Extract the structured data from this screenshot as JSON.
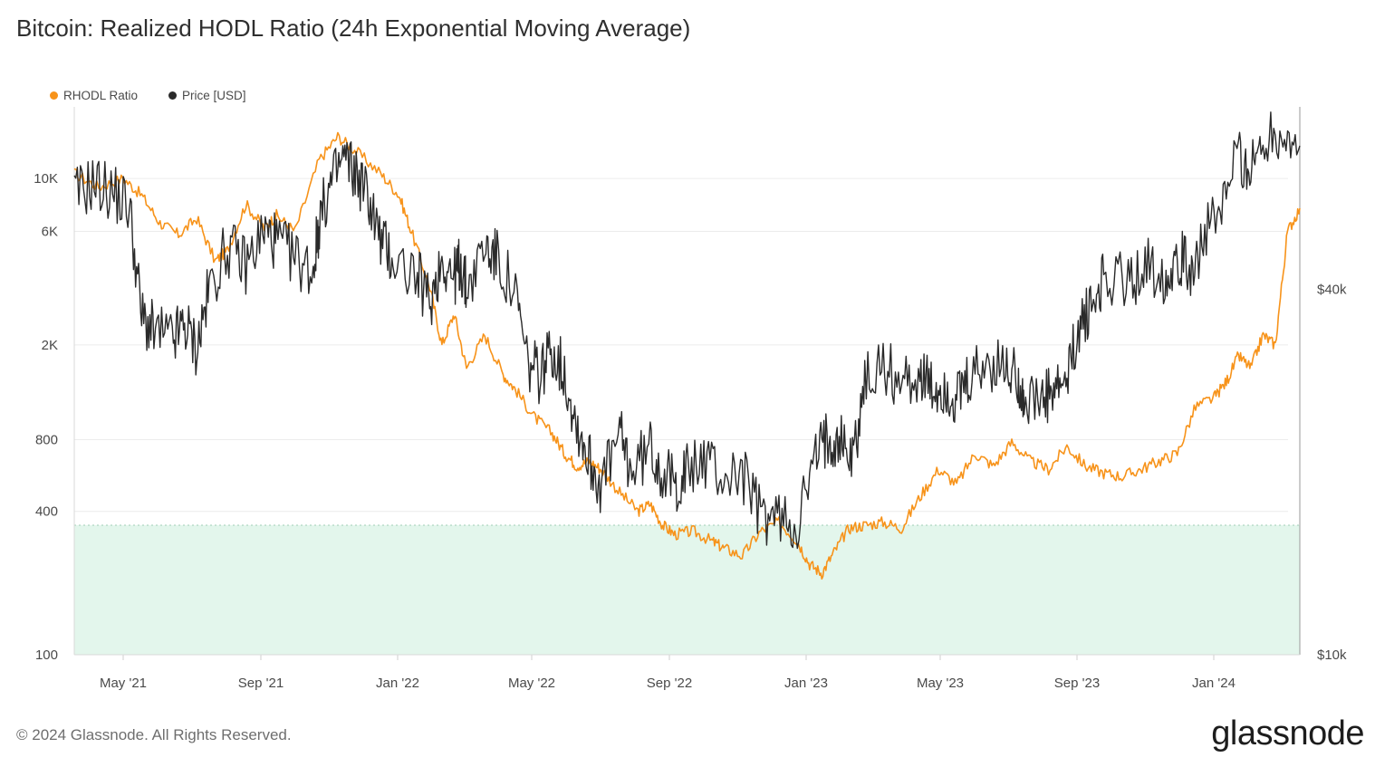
{
  "title": "Bitcoin: Realized HODL Ratio (24h Exponential Moving Average)",
  "footer": "© 2024 Glassnode. All Rights Reserved.",
  "brand": "glassnode",
  "chart_data": {
    "type": "line",
    "title": "Bitcoin: Realized HODL Ratio (24h Exponential Moving Average)",
    "x_ticks": [
      "May '21",
      "Sep '21",
      "Jan '22",
      "May '22",
      "Sep '22",
      "Jan '23",
      "May '23",
      "Sep '23",
      "Jan '24"
    ],
    "x_range": [
      "2021-03-25",
      "2024-03-28"
    ],
    "left_axis": {
      "scale": "log",
      "ticks": [
        "100",
        "400",
        "800",
        "2K",
        "6K",
        "10K"
      ],
      "tick_values": [
        100,
        400,
        800,
        2000,
        6000,
        10000
      ],
      "range": [
        100,
        20000
      ]
    },
    "right_axis": {
      "scale": "log",
      "ticks": [
        "$10k",
        "$40k"
      ],
      "tick_values": [
        10000,
        40000
      ],
      "range": [
        10000,
        80000
      ]
    },
    "highlight_band": {
      "axis": "left",
      "from": 100,
      "to": 350,
      "color": "#e3f6ec"
    },
    "legend": [
      {
        "name": "RHODL Ratio",
        "color": "#f7931a"
      },
      {
        "name": "Price [USD]",
        "color": "#2a2a2a"
      }
    ],
    "series": [
      {
        "name": "RHODL Ratio",
        "axis": "left",
        "color": "#f7931a",
        "x": [
          0,
          0.02,
          0.04,
          0.055,
          0.07,
          0.085,
          0.1,
          0.115,
          0.125,
          0.14,
          0.155,
          0.165,
          0.18,
          0.2,
          0.215,
          0.23,
          0.25,
          0.265,
          0.275,
          0.29,
          0.3,
          0.31,
          0.32,
          0.335,
          0.35,
          0.36,
          0.375,
          0.39,
          0.4,
          0.41,
          0.42,
          0.43,
          0.445,
          0.46,
          0.47,
          0.48,
          0.49,
          0.505,
          0.52,
          0.53,
          0.545,
          0.56,
          0.575,
          0.59,
          0.6,
          0.61,
          0.62,
          0.632,
          0.645,
          0.66,
          0.675,
          0.69,
          0.705,
          0.72,
          0.735,
          0.75,
          0.765,
          0.78,
          0.795,
          0.81,
          0.825,
          0.84,
          0.855,
          0.87,
          0.885,
          0.9,
          0.915,
          0.93,
          0.94,
          0.95,
          0.96,
          0.97,
          0.98,
          0.99,
          1.0
        ],
        "y": [
          10500,
          9200,
          10000,
          8500,
          6500,
          5800,
          6800,
          4500,
          5000,
          7800,
          6200,
          7000,
          6000,
          12000,
          15000,
          13000,
          10500,
          8500,
          6000,
          3500,
          2000,
          2700,
          1600,
          2200,
          1500,
          1300,
          1000,
          850,
          700,
          620,
          650,
          600,
          480,
          400,
          430,
          350,
          320,
          330,
          300,
          280,
          260,
          330,
          360,
          300,
          240,
          220,
          270,
          340,
          350,
          360,
          340,
          460,
          600,
          520,
          700,
          620,
          780,
          650,
          600,
          750,
          620,
          580,
          560,
          600,
          650,
          700,
          1100,
          1200,
          1400,
          1800,
          1600,
          2200,
          2000,
          6000,
          7500
        ]
      },
      {
        "name": "Price [USD]",
        "axis": "right",
        "color": "#2a2a2a",
        "x": [
          0,
          0.015,
          0.03,
          0.045,
          0.055,
          0.065,
          0.08,
          0.09,
          0.1,
          0.11,
          0.125,
          0.14,
          0.155,
          0.165,
          0.18,
          0.195,
          0.2,
          0.21,
          0.22,
          0.23,
          0.24,
          0.25,
          0.26,
          0.28,
          0.29,
          0.3,
          0.31,
          0.315,
          0.32,
          0.335,
          0.345,
          0.36,
          0.37,
          0.38,
          0.39,
          0.4,
          0.41,
          0.42,
          0.43,
          0.445,
          0.455,
          0.47,
          0.48,
          0.49,
          0.5,
          0.515,
          0.53,
          0.545,
          0.56,
          0.575,
          0.59,
          0.605,
          0.615,
          0.625,
          0.635,
          0.645,
          0.66,
          0.675,
          0.69,
          0.7,
          0.71,
          0.72,
          0.73,
          0.745,
          0.76,
          0.77,
          0.775,
          0.79,
          0.8,
          0.81,
          0.82,
          0.83,
          0.84,
          0.86,
          0.875,
          0.89,
          0.9,
          0.91,
          0.92,
          0.935,
          0.95,
          0.96,
          0.97,
          0.985,
          1.0
        ],
        "y": [
          57000,
          60000,
          58000,
          55000,
          36000,
          34000,
          33000,
          35000,
          32000,
          40000,
          47000,
          44000,
          50000,
          48000,
          45000,
          43000,
          52000,
          60000,
          66000,
          62000,
          57000,
          48000,
          45000,
          42000,
          38000,
          45000,
          42000,
          44000,
          40000,
          47000,
          45000,
          39000,
          30000,
          29000,
          32000,
          29000,
          24000,
          21000,
          19000,
          23000,
          20000,
          22000,
          20000,
          19000,
          20000,
          21000,
          19500,
          20000,
          17000,
          16800,
          16500,
          21000,
          23000,
          22800,
          21000,
          28000,
          30000,
          28000,
          29000,
          27000,
          27500,
          26000,
          28000,
          30000,
          29500,
          29000,
          26000,
          26000,
          27000,
          28000,
          35000,
          37000,
          42000,
          41000,
          44000,
          42000,
          46000,
          43000,
          48000,
          53000,
          68000,
          62000,
          71000,
          73000,
          69000
        ]
      }
    ]
  }
}
